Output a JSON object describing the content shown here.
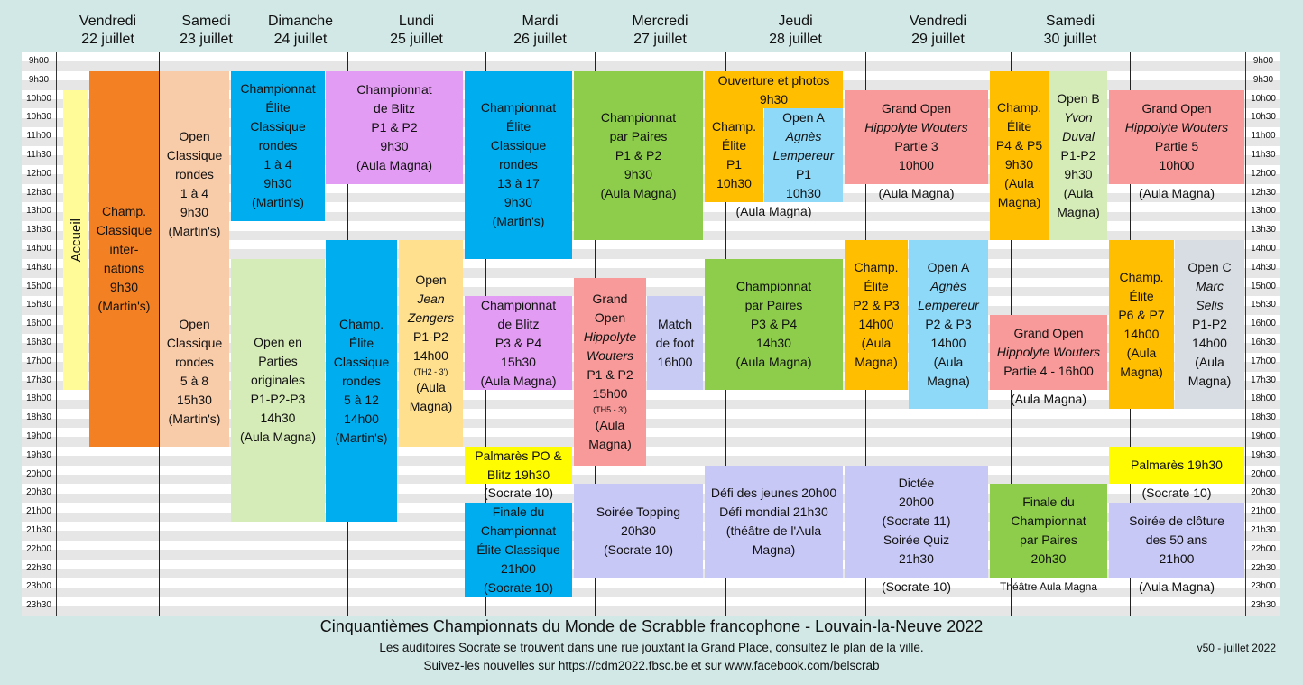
{
  "days": [
    {
      "name": "Vendredi",
      "date": "22 juillet"
    },
    {
      "name": "Samedi",
      "date": "23 juillet"
    },
    {
      "name": "Dimanche",
      "date": "24 juillet"
    },
    {
      "name": "Lundi",
      "date": "25 juillet"
    },
    {
      "name": "Mardi",
      "date": "26 juillet"
    },
    {
      "name": "Mercredi",
      "date": "27 juillet"
    },
    {
      "name": "Jeudi",
      "date": "28 juillet"
    },
    {
      "name": "Vendredi",
      "date": "29 juillet"
    },
    {
      "name": "Samedi",
      "date": "30 juillet"
    }
  ],
  "times": [
    "9h00",
    "9h30",
    "10h00",
    "10h30",
    "11h00",
    "11h30",
    "12h00",
    "12h30",
    "13h00",
    "13h30",
    "14h00",
    "14h30",
    "15h00",
    "15h30",
    "16h00",
    "16h30",
    "17h00",
    "17h30",
    "18h00",
    "18h30",
    "19h00",
    "19h30",
    "20h00",
    "20h30",
    "21h00",
    "21h30",
    "22h00",
    "22h30",
    "23h00",
    "23h30"
  ],
  "colors": {
    "orange": "#f48024",
    "peach": "#f8cba9",
    "cyan": "#00aeef",
    "violet": "#e39cf3",
    "green": "#8dcd4b",
    "lightgreen": "#d6ecb8",
    "pink": "#f89a9a",
    "yellow": "#fffb00",
    "gold": "#ffbf00",
    "lightyellow": "#fff28f",
    "lightblue": "#8ed8f8",
    "lavender": "#c8c8f6",
    "paleyellow": "#fffb99",
    "gray": "#d8dde3",
    "sand": "#ffe08f",
    "paleblue": "#c8ccf5"
  },
  "events": {
    "accueil": "Accueil",
    "fri22_champ": [
      "Champ.",
      "Classique",
      "inter-",
      "nations",
      "9h30",
      "(Martin's)"
    ],
    "fri22_open1": [
      "Open",
      "Classique",
      "rondes",
      "1 à 4",
      "9h30",
      "(Martin's)"
    ],
    "fri22_open2": [
      "Open",
      "Classique",
      "rondes",
      "5 à 8",
      "15h30",
      "(Martin's)"
    ],
    "sat23_champ": [
      "Championnat",
      "Élite",
      "Classique",
      "rondes",
      "1 à 4",
      "9h30",
      "(Martin's)"
    ],
    "sat23_open": [
      "Open en",
      "Parties",
      "originales",
      "P1-P2-P3",
      "14h30",
      "(Aula Magna)"
    ],
    "sun24_blitz": [
      "Championnat",
      "de Blitz",
      "P1 & P2",
      "9h30",
      "(Aula Magna)"
    ],
    "sun24_champ": [
      "Champ.",
      "Élite",
      "Classique",
      "rondes",
      "5 à 12",
      "14h00",
      "(Martin's)"
    ],
    "sun24_open_a": "Open",
    "sun24_open_b": "Jean",
    "sun24_open_c": "Zengers",
    "sun24_open_d": "P1-P2",
    "sun24_open_e": "14h00",
    "sun24_open_f": "(TH2 - 3')",
    "sun24_open_g": "(Aula",
    "sun24_open_h": "Magna)",
    "mon25_champ": [
      "Championnat",
      "Élite",
      "Classique",
      "rondes",
      "13 à 17",
      "9h30",
      "(Martin's)"
    ],
    "mon25_blitz": [
      "Championnat",
      "de Blitz",
      "P3 & P4",
      "15h30",
      "(Aula Magna)"
    ],
    "mon25_palm": [
      "Palmarès PO &",
      "Blitz 19h30"
    ],
    "mon25_socrate": "(Socrate 10)",
    "mon25_finale": [
      "Finale du",
      "Championnat",
      "Élite Classique",
      "21h00",
      "(Socrate 10)"
    ],
    "tue26_paires": [
      "Championnat",
      "par Paires",
      "P1 & P2",
      "9h30",
      "(Aula Magna)"
    ],
    "tue26_go_a": "Grand",
    "tue26_go_b": "Open",
    "tue26_go_c": "Hippolyte",
    "tue26_go_d": "Wouters",
    "tue26_go_e": "P1 & P2",
    "tue26_go_f": "15h00",
    "tue26_go_g": "(TH5 - 3')",
    "tue26_go_h": "(Aula",
    "tue26_go_i": "Magna)",
    "tue26_foot": [
      "Match",
      "de foot",
      "16h00"
    ],
    "tue26_topping": [
      "Soirée Topping",
      "20h30",
      "(Socrate 10)"
    ],
    "wed27_ouv": [
      "Ouverture et photos",
      "9h30"
    ],
    "wed27_champ": [
      "Champ.",
      "Élite",
      "P1",
      "10h30"
    ],
    "wed27_opena_a": "Open A",
    "wed27_opena_b": "Agnès",
    "wed27_opena_c": "Lempereur",
    "wed27_opena_d": "P1",
    "wed27_opena_e": "10h30",
    "wed27_aula": "(Aula Magna)",
    "wed27_paires": [
      "Championnat",
      "par Paires",
      "P3 & P4",
      "14h30",
      "(Aula Magna)"
    ],
    "wed27_defi": [
      "Défi des jeunes 20h00",
      "Défi mondial 21h30",
      "(théâtre de l'Aula",
      "Magna)"
    ],
    "thu28_go_a": "Grand Open",
    "thu28_go_b": "Hippolyte Wouters",
    "thu28_go_c": "Partie 3",
    "thu28_go_d": "10h00",
    "thu28_aula1": "(Aula Magna)",
    "thu28_champ": [
      "Champ.",
      "Élite",
      "P2 & P3",
      "14h00",
      "(Aula",
      "Magna)"
    ],
    "thu28_opena_a": "Open A",
    "thu28_opena_b": "Agnès",
    "thu28_opena_c": "Lempereur",
    "thu28_opena_d": "P2 & P3",
    "thu28_opena_e": "14h00",
    "thu28_opena_f": "(Aula",
    "thu28_opena_g": "Magna)",
    "thu28_go4_a": "Grand Open",
    "thu28_go4_b": "Hippolyte Wouters",
    "thu28_go4_c": "Partie 4 - 16h00",
    "thu28_aula2": "(Aula Magna)",
    "thu28_dictee": [
      "Dictée",
      "20h00",
      "(Socrate 11)",
      "Soirée Quiz",
      "21h30"
    ],
    "thu28_socrate": "(Socrate 10)",
    "fri29_champ": [
      "Champ.",
      "Élite",
      "P4 & P5",
      "9h30",
      "(Aula",
      "Magna)"
    ],
    "fri29_openb_a": "Open B",
    "fri29_openb_b": "Yvon",
    "fri29_openb_c": "Duval",
    "fri29_openb_d": "P1-P2",
    "fri29_openb_e": "9h30",
    "fri29_openb_f": "(Aula",
    "fri29_openb_g": "Magna)",
    "fri29_finale": [
      "Finale du",
      "Championnat",
      "par Paires",
      "20h30"
    ],
    "fri29_theatre": "Théâtre Aula Magna",
    "sat30_go_a": "Grand Open",
    "sat30_go_b": "Hippolyte Wouters",
    "sat30_go_c": "Partie 5",
    "sat30_go_d": "10h00",
    "sat30_aula1": "(Aula Magna)",
    "sat30_champ": [
      "Champ.",
      "Élite",
      "P6 & P7",
      "14h00",
      "(Aula",
      "Magna)"
    ],
    "sat30_openc_a": "Open C",
    "sat30_openc_b": "Marc",
    "sat30_openc_c": "Selis",
    "sat30_openc_d": "P1-P2",
    "sat30_openc_e": "14h00",
    "sat30_openc_f": "(Aula",
    "sat30_openc_g": "Magna)",
    "sat30_palm": "Palmarès 19h30",
    "sat30_socrate": "(Socrate 10)",
    "sat30_cloture": [
      "Soirée de clôture",
      "des 50 ans",
      "21h00"
    ],
    "sat30_aula2": "(Aula Magna)"
  },
  "footer": {
    "title": "Cinquantièmes Championnats du Monde de Scrabble francophone - Louvain-la-Neuve 2022",
    "line2": "Les auditoires Socrate se trouvent dans une rue jouxtant la Grand Place, consultez le plan de la ville.",
    "line3": "Suivez-les nouvelles sur https://cdm2022.fbsc.be et sur www.facebook.com/belscrab",
    "version": "v50 - juillet 2022"
  }
}
